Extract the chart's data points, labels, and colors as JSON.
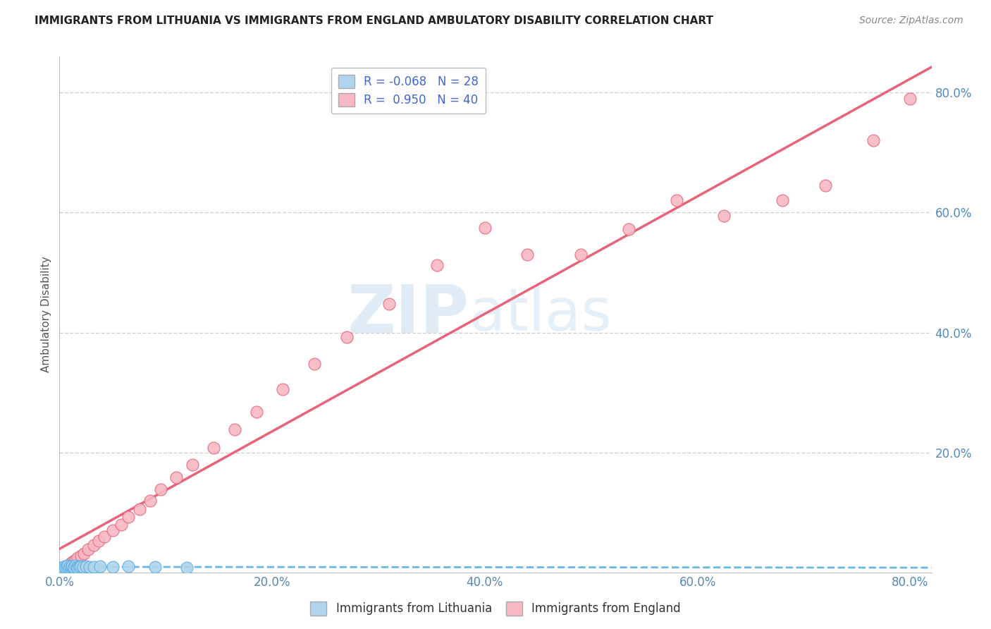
{
  "title": "IMMIGRANTS FROM LITHUANIA VS IMMIGRANTS FROM ENGLAND AMBULATORY DISABILITY CORRELATION CHART",
  "source": "Source: ZipAtlas.com",
  "ylabel": "Ambulatory Disability",
  "xlabel": "",
  "legend_labels": [
    "Immigrants from Lithuania",
    "Immigrants from England"
  ],
  "r_lithuania": -0.068,
  "n_lithuania": 28,
  "r_england": 0.95,
  "n_england": 40,
  "xlim": [
    0.0,
    0.82
  ],
  "ylim": [
    0.0,
    0.86
  ],
  "xticks": [
    0.0,
    0.2,
    0.4,
    0.6,
    0.8
  ],
  "yticks": [
    0.2,
    0.4,
    0.6,
    0.8
  ],
  "xtick_labels": [
    "0.0%",
    "20.0%",
    "40.0%",
    "60.0%",
    "80.0%"
  ],
  "ytick_labels": [
    "20.0%",
    "40.0%",
    "60.0%",
    "80.0%"
  ],
  "color_lithuania": "#aed4ed",
  "color_england": "#f5b8c4",
  "line_color_lithuania": "#5baee0",
  "line_color_england": "#e8637a",
  "watermark_zip": "ZIP",
  "watermark_atlas": "atlas",
  "background_color": "#ffffff",
  "grid_color": "#cccccc",
  "lithuania_x": [
    0.002,
    0.003,
    0.004,
    0.005,
    0.006,
    0.007,
    0.008,
    0.009,
    0.01,
    0.011,
    0.012,
    0.013,
    0.014,
    0.015,
    0.016,
    0.017,
    0.018,
    0.019,
    0.02,
    0.022,
    0.025,
    0.028,
    0.032,
    0.038,
    0.05,
    0.065,
    0.09,
    0.12
  ],
  "lithuania_y": [
    0.008,
    0.007,
    0.009,
    0.01,
    0.008,
    0.009,
    0.011,
    0.008,
    0.01,
    0.009,
    0.01,
    0.008,
    0.009,
    0.011,
    0.009,
    0.008,
    0.01,
    0.009,
    0.01,
    0.009,
    0.01,
    0.009,
    0.009,
    0.01,
    0.009,
    0.01,
    0.009,
    0.008
  ],
  "england_x": [
    0.003,
    0.005,
    0.007,
    0.009,
    0.011,
    0.013,
    0.015,
    0.017,
    0.02,
    0.023,
    0.027,
    0.032,
    0.037,
    0.042,
    0.05,
    0.058,
    0.065,
    0.075,
    0.085,
    0.095,
    0.11,
    0.125,
    0.145,
    0.165,
    0.185,
    0.21,
    0.24,
    0.27,
    0.31,
    0.355,
    0.4,
    0.44,
    0.49,
    0.535,
    0.58,
    0.625,
    0.68,
    0.72,
    0.765,
    0.8
  ],
  "england_y": [
    0.005,
    0.008,
    0.01,
    0.013,
    0.016,
    0.018,
    0.021,
    0.024,
    0.028,
    0.032,
    0.038,
    0.045,
    0.052,
    0.06,
    0.07,
    0.08,
    0.092,
    0.105,
    0.12,
    0.138,
    0.158,
    0.18,
    0.208,
    0.238,
    0.268,
    0.305,
    0.348,
    0.392,
    0.448,
    0.512,
    0.575,
    0.53,
    0.53,
    0.572,
    0.62,
    0.595,
    0.62,
    0.645,
    0.72,
    0.79
  ]
}
